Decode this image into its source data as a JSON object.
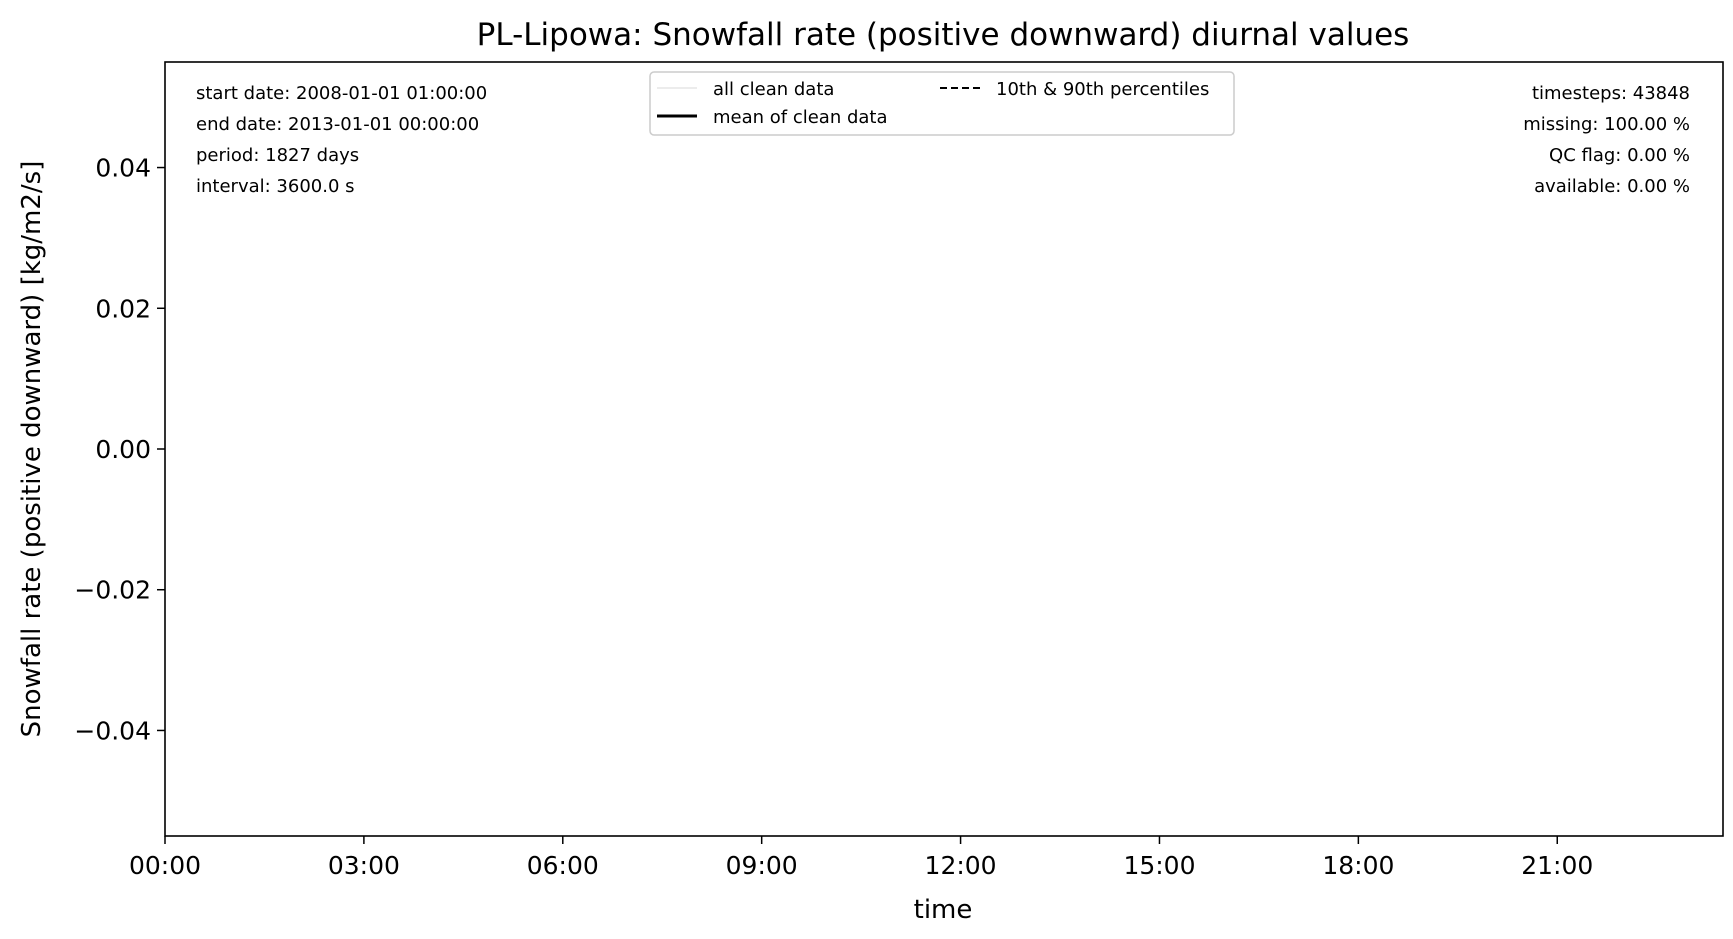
{
  "chart_data": {
    "type": "line",
    "title": "PL-Lipowa: Snowfall rate (positive downward) diurnal values",
    "xlabel": "time",
    "ylabel": "Snowfall rate (positive downward) [kg/m2/s]",
    "xlim": [
      0,
      23.5
    ],
    "ylim": [
      -0.055,
      0.055
    ],
    "x_ticks": [
      {
        "value": 0,
        "label": "00:00"
      },
      {
        "value": 3,
        "label": "03:00"
      },
      {
        "value": 6,
        "label": "06:00"
      },
      {
        "value": 9,
        "label": "09:00"
      },
      {
        "value": 12,
        "label": "12:00"
      },
      {
        "value": 15,
        "label": "15:00"
      },
      {
        "value": 18,
        "label": "18:00"
      },
      {
        "value": 21,
        "label": "21:00"
      }
    ],
    "y_ticks": [
      {
        "value": 0.04,
        "label": "0.04"
      },
      {
        "value": 0.02,
        "label": "0.02"
      },
      {
        "value": 0.0,
        "label": "0.00"
      },
      {
        "value": -0.02,
        "label": "−0.02"
      },
      {
        "value": -0.04,
        "label": "−0.04"
      }
    ],
    "grid": false,
    "legend_position": "top-center",
    "legend": [
      {
        "label": "all clean data",
        "style": "thin",
        "color": "#d9d9d9"
      },
      {
        "label": "mean of clean data",
        "style": "solid",
        "color": "#000000"
      },
      {
        "label": "10th & 90th percentiles",
        "style": "dashed",
        "color": "#000000"
      }
    ],
    "series": [],
    "info_left": [
      "start date: 2008-01-01 01:00:00",
      "end date: 2013-01-01 00:00:00",
      "period: 1827 days",
      "interval: 3600.0 s"
    ],
    "info_right": [
      "timesteps: 43848",
      "missing: 100.00 %",
      "QC flag: 0.00 %",
      "available: 0.00 %"
    ]
  }
}
